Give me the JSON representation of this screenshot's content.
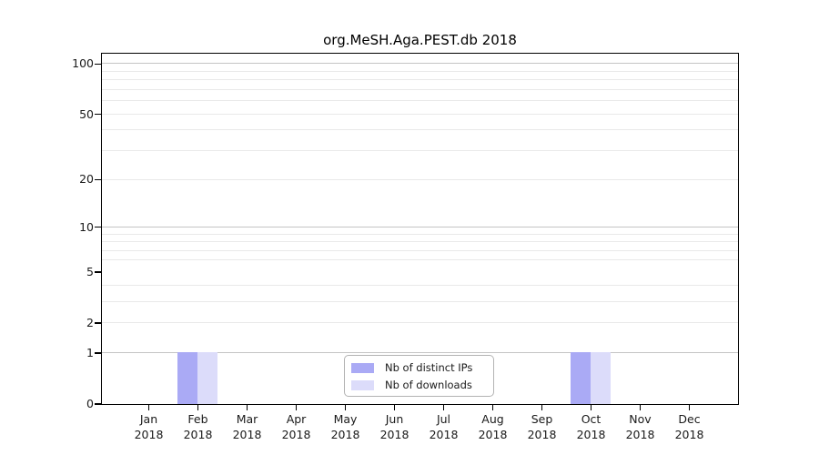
{
  "chart_data": {
    "type": "bar",
    "title": "org.MeSH.Aga.PEST.db 2018",
    "categories": [
      "Jan",
      "Feb",
      "Mar",
      "Apr",
      "May",
      "Jun",
      "Jul",
      "Aug",
      "Sep",
      "Oct",
      "Nov",
      "Dec"
    ],
    "categories_year": "2018",
    "series": [
      {
        "name": "Nb of distinct IPs",
        "color": "#aaaaf5",
        "values": [
          0,
          1,
          0,
          0,
          0,
          0,
          0,
          0,
          0,
          1,
          0,
          0
        ]
      },
      {
        "name": "Nb of downloads",
        "color": "#dcdcfa",
        "values": [
          0,
          1,
          0,
          0,
          0,
          0,
          0,
          0,
          0,
          1,
          0,
          0
        ]
      }
    ],
    "xlabel": "",
    "ylabel": "",
    "yscale": "log1p",
    "ylim": [
      0,
      115
    ],
    "yticks": [
      0,
      1,
      2,
      5,
      10,
      20,
      50,
      100
    ],
    "grid": "horizontal",
    "grid_major": [
      1,
      10,
      100
    ],
    "grid_minor": [
      2,
      3,
      4,
      6,
      7,
      8,
      9,
      20,
      30,
      40,
      50,
      60,
      70,
      80,
      90
    ],
    "grid_major_color": "#c4c4c4",
    "grid_minor_color": "#e9e9e9",
    "axis_color": "#000000",
    "legend_position": "lower center inside"
  }
}
